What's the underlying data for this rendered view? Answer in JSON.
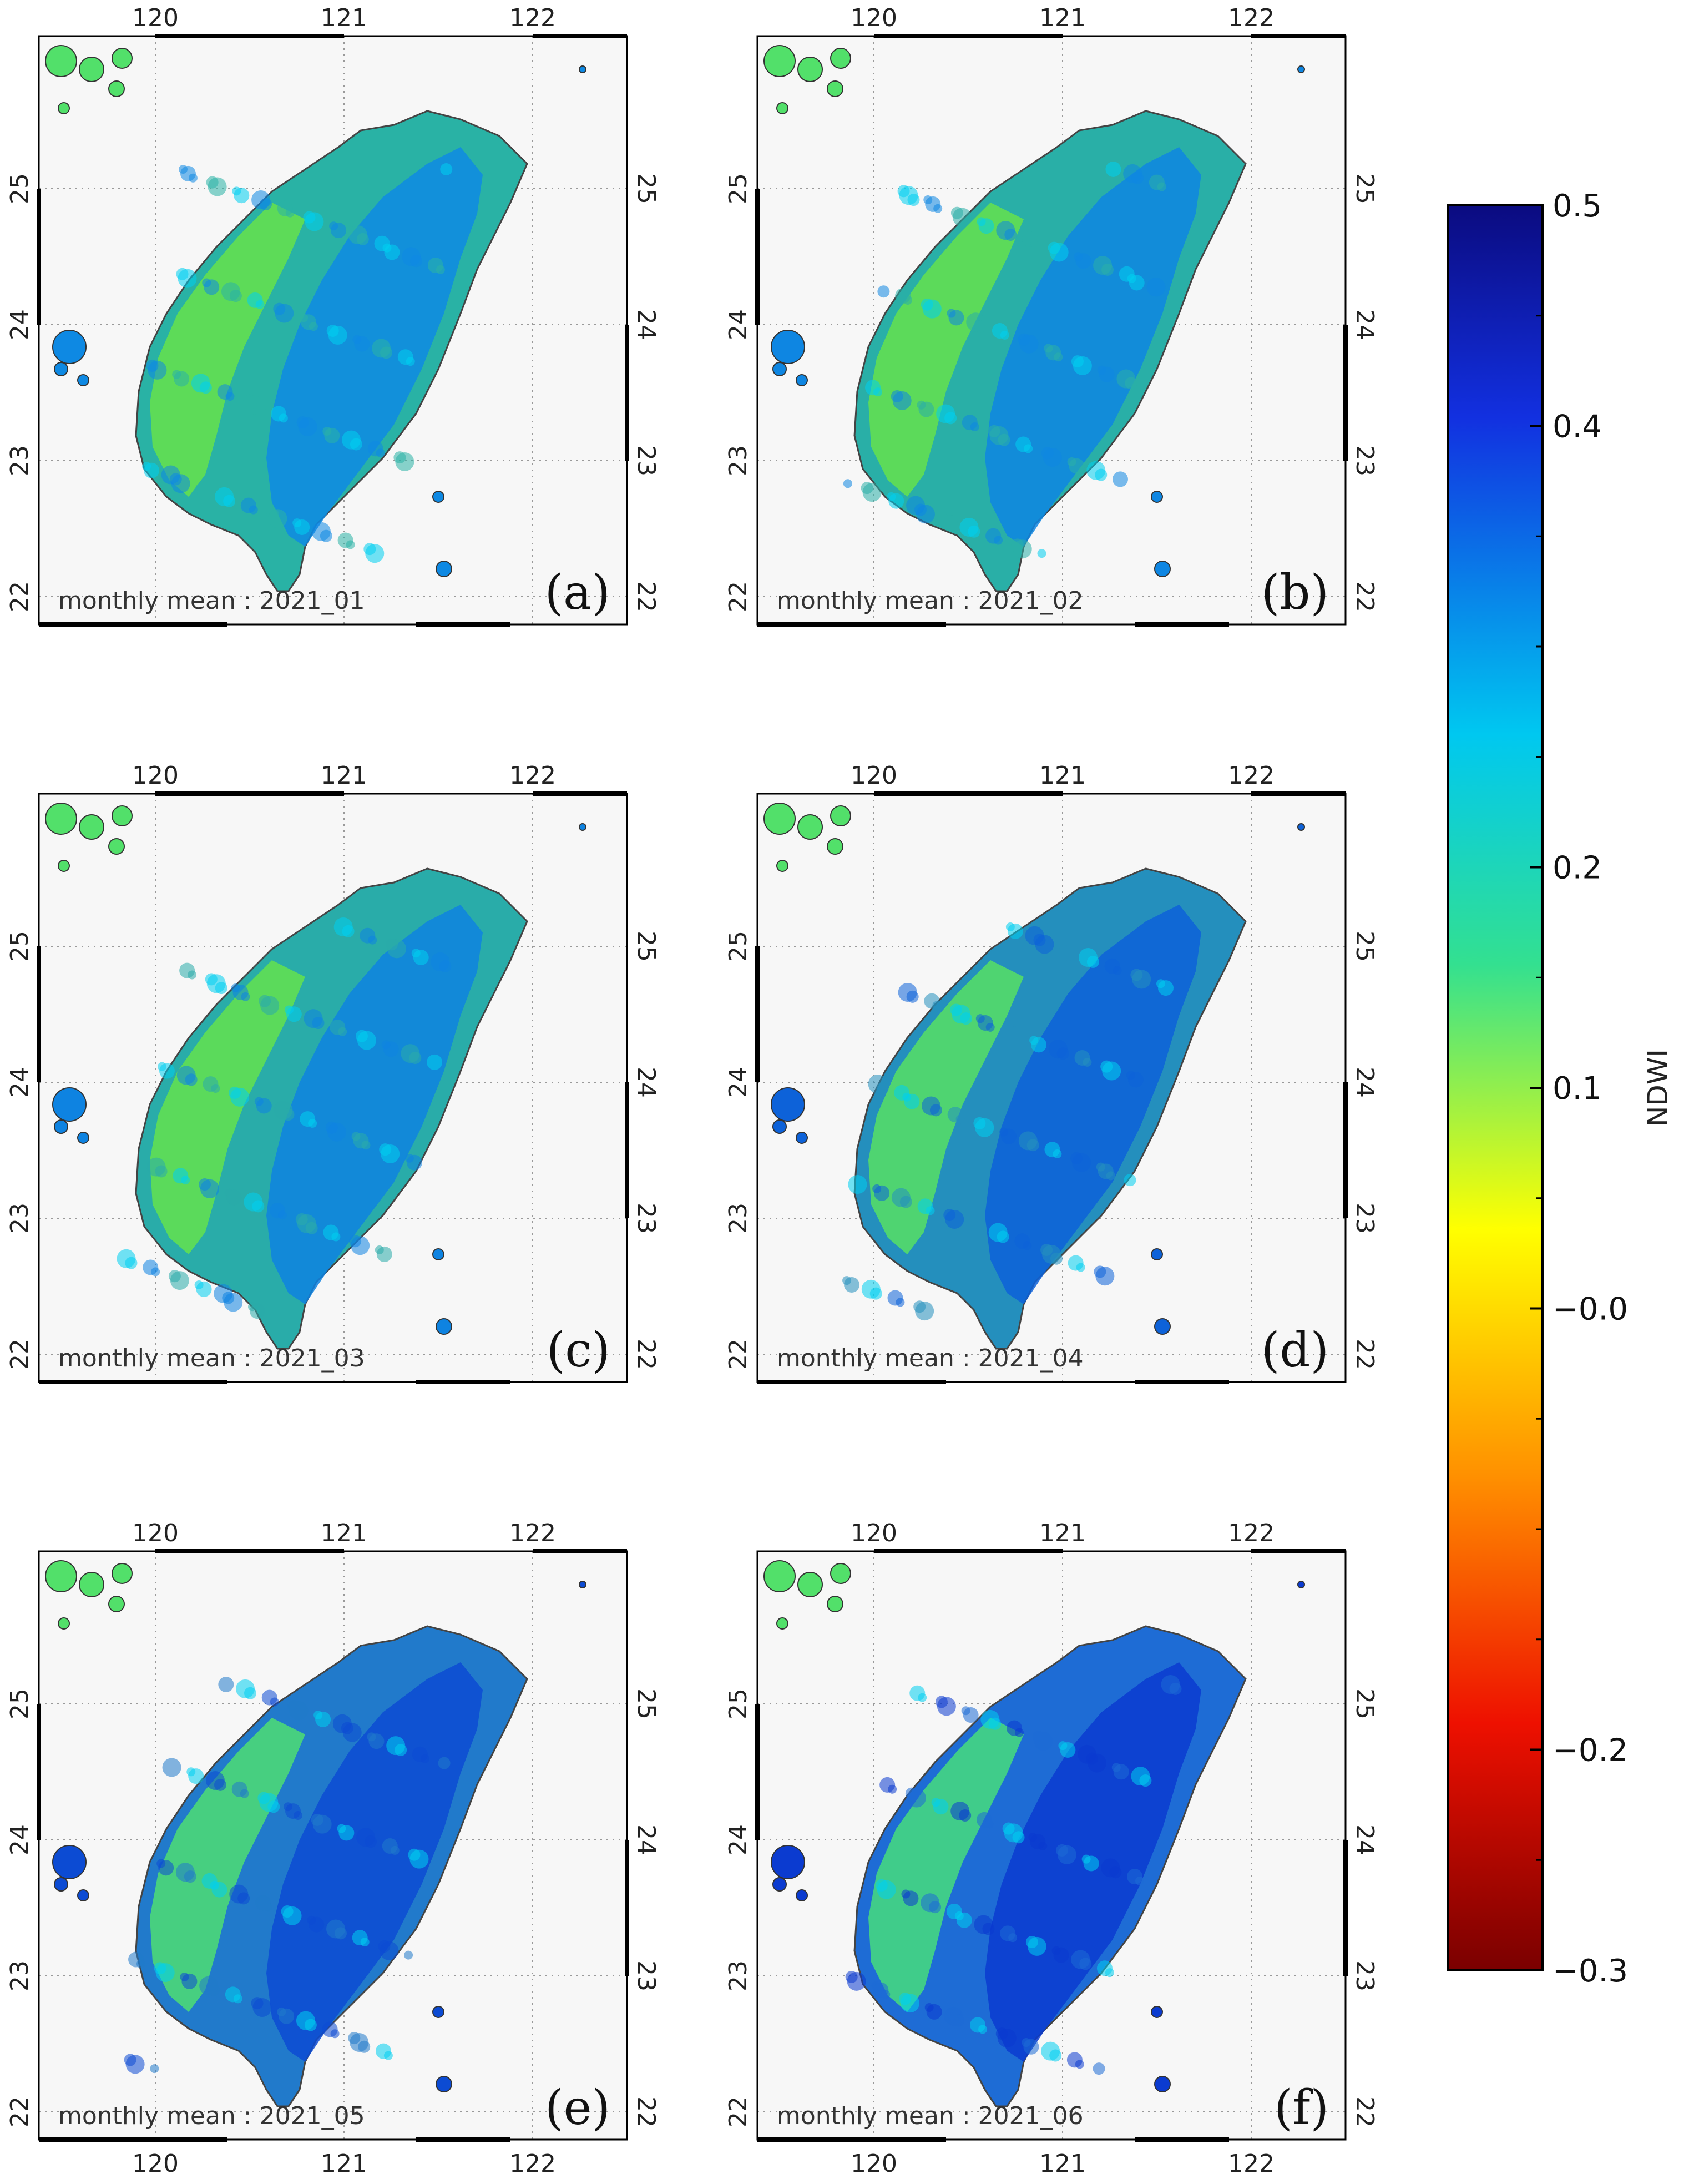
{
  "map_axes": {
    "lon_ticks": [
      "120",
      "121",
      "122"
    ],
    "lat_ticks": [
      "22",
      "23",
      "24",
      "25"
    ]
  },
  "panels": [
    {
      "letter": "(a)",
      "caption": "monthly mean : 2021_01",
      "wetness": 0.3
    },
    {
      "letter": "(b)",
      "caption": "monthly mean : 2021_02",
      "wetness": 0.32
    },
    {
      "letter": "(c)",
      "caption": "monthly mean : 2021_03",
      "wetness": 0.34
    },
    {
      "letter": "(d)",
      "caption": "monthly mean : 2021_04",
      "wetness": 0.55
    },
    {
      "letter": "(e)",
      "caption": "monthly mean : 2021_05",
      "wetness": 0.7
    },
    {
      "letter": "(f)",
      "caption": "monthly mean : 2021_06",
      "wetness": 0.8
    }
  ],
  "colorbar": {
    "title": "NDWI",
    "range": [
      -0.3,
      0.5
    ],
    "tick_labels": [
      "0.5",
      "0.4",
      "0.2",
      "0.1",
      "−0.0",
      "−0.2",
      "−0.3"
    ],
    "colors": [
      "#0b0b80",
      "#1230e0",
      "#00c8f0",
      "#33e090",
      "#ffff00",
      "#ff9000",
      "#ee1000",
      "#7a0000"
    ]
  },
  "colors": {
    "ocean": "#f7f7f7",
    "frame": "#000000",
    "grid": "#9a9a9a"
  }
}
